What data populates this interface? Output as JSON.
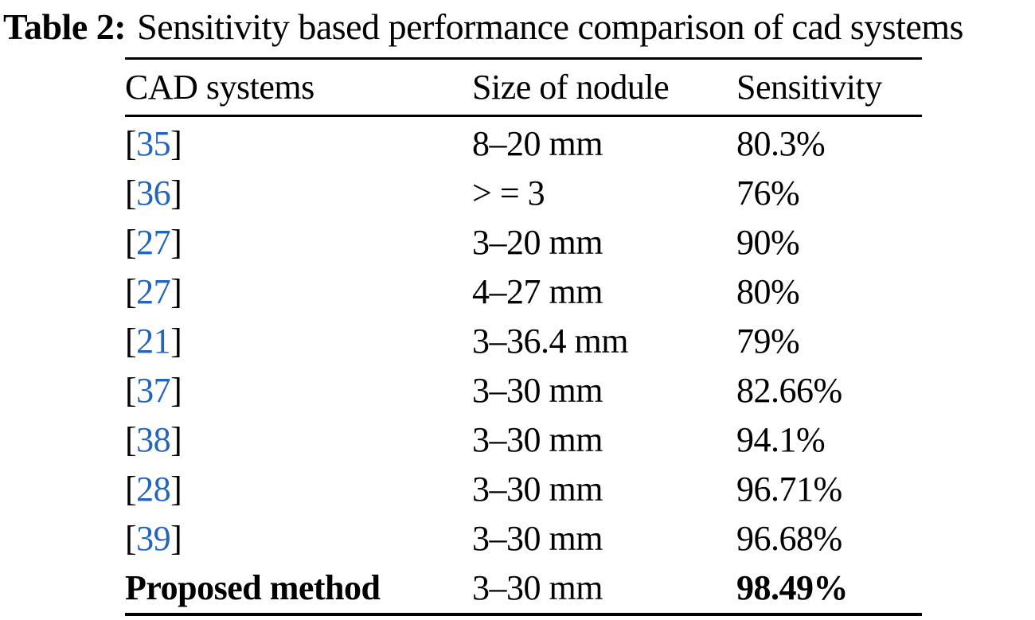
{
  "caption": {
    "label": "Table 2:",
    "text": "Sensitivity based performance comparison of cad systems"
  },
  "table": {
    "headers": [
      "CAD systems",
      "Size of nodule",
      "Sensitivity"
    ],
    "rows": [
      {
        "cite": "35",
        "label": null,
        "size": "8–20 mm",
        "sensitivity": "80.3%",
        "bold": false
      },
      {
        "cite": "36",
        "label": null,
        "size": "> = 3",
        "sensitivity": "76%",
        "bold": false
      },
      {
        "cite": "27",
        "label": null,
        "size": "3–20 mm",
        "sensitivity": "90%",
        "bold": false
      },
      {
        "cite": "27",
        "label": null,
        "size": "4–27 mm",
        "sensitivity": "80%",
        "bold": false
      },
      {
        "cite": "21",
        "label": null,
        "size": "3–36.4 mm",
        "sensitivity": "79%",
        "bold": false
      },
      {
        "cite": "37",
        "label": null,
        "size": "3–30 mm",
        "sensitivity": "82.66%",
        "bold": false
      },
      {
        "cite": "38",
        "label": null,
        "size": "3–30 mm",
        "sensitivity": "94.1%",
        "bold": false
      },
      {
        "cite": "28",
        "label": null,
        "size": "3–30 mm",
        "sensitivity": "96.71%",
        "bold": false
      },
      {
        "cite": "39",
        "label": null,
        "size": "3–30 mm",
        "sensitivity": "96.68%",
        "bold": false
      },
      {
        "cite": null,
        "label": "Proposed method",
        "size": "3–30 mm",
        "sensitivity": "98.49%",
        "bold": true
      }
    ]
  },
  "colors": {
    "citation": "#2165bd",
    "text": "#000000",
    "background": "#ffffff"
  }
}
